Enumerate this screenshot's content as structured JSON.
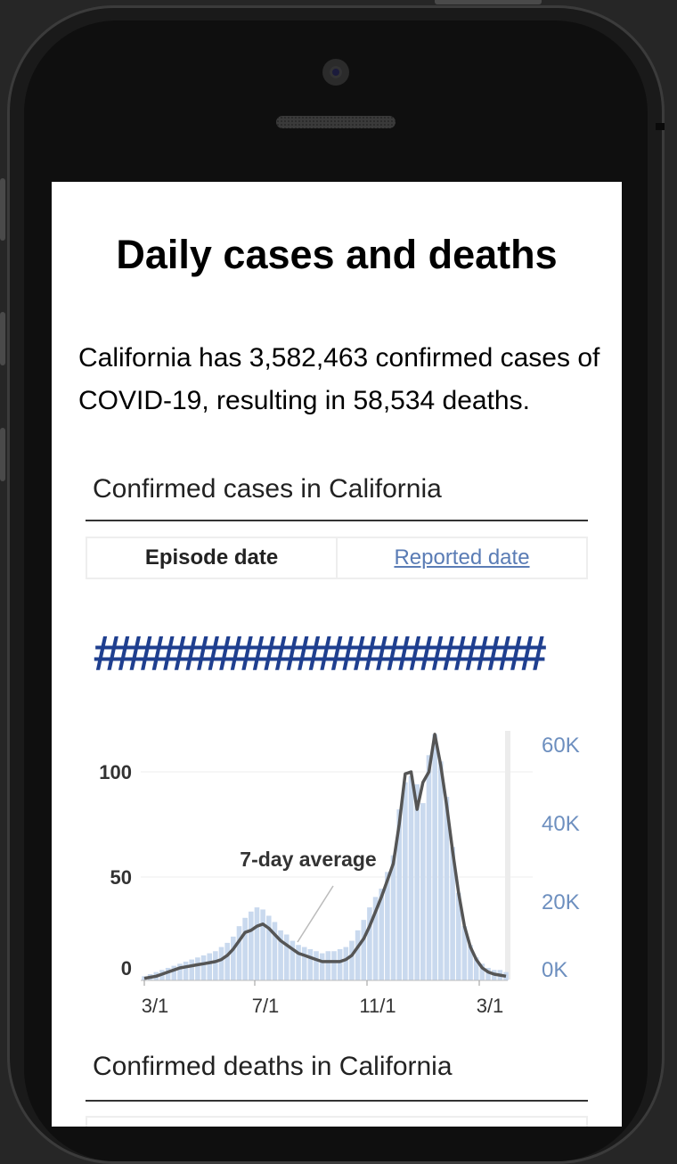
{
  "header": {
    "title": "Daily cases and deaths"
  },
  "summary": {
    "text": "California has 3,582,463 confirmed cases of COVID-19, resulting in 58,534 deaths."
  },
  "cases_section": {
    "title": "Confirmed cases in California",
    "tabs": [
      {
        "label": "Episode date",
        "active": true
      },
      {
        "label": "Reported date",
        "active": false
      }
    ],
    "placeholder_value": "####################"
  },
  "deaths_section": {
    "title": "Confirmed deaths in California"
  },
  "colors": {
    "bars": "#c9d9ee",
    "line": "#555555",
    "right_axis": "#6d8fbf",
    "heading_number": "#1f3f8f"
  },
  "chart_data": {
    "type": "bar",
    "x_ticks": [
      "3/1",
      "7/1",
      "11/1",
      "3/1"
    ],
    "y_left_ticks": [
      "0",
      "50",
      "100"
    ],
    "y_right_ticks": [
      "0K",
      "20K",
      "40K",
      "60K"
    ],
    "ylim_left": [
      0,
      120
    ],
    "ylim_right": [
      0,
      62000
    ],
    "annotation": "7-day average",
    "series": [
      {
        "kind": "bars",
        "values": [
          2,
          3,
          4,
          5,
          6,
          7,
          8,
          9,
          10,
          11,
          12,
          13,
          14,
          16,
          18,
          21,
          26,
          30,
          33,
          35,
          34,
          31,
          28,
          24,
          22,
          19,
          17,
          16,
          15,
          14,
          13,
          14,
          14,
          15,
          16,
          19,
          24,
          29,
          35,
          40,
          44,
          52,
          60,
          82,
          95,
          98,
          94,
          85,
          108,
          118,
          105,
          88,
          64,
          42,
          26,
          17,
          11,
          8,
          6,
          5,
          5,
          4
        ]
      },
      {
        "name": "7-day average",
        "kind": "line",
        "values": [
          1,
          1.5,
          2,
          3,
          4,
          5,
          6,
          6.5,
          7,
          7.5,
          8,
          8.5,
          9,
          10,
          12,
          15,
          19,
          23,
          24,
          26,
          27,
          25,
          22,
          19,
          17,
          15,
          13,
          12,
          11,
          10,
          9,
          9,
          9,
          9,
          10,
          12,
          16,
          20,
          26,
          33,
          40,
          48,
          56,
          75,
          99,
          100,
          82,
          95,
          100,
          118,
          103,
          84,
          62,
          42,
          26,
          16,
          10,
          6,
          4,
          3,
          2.5,
          2
        ]
      }
    ]
  }
}
